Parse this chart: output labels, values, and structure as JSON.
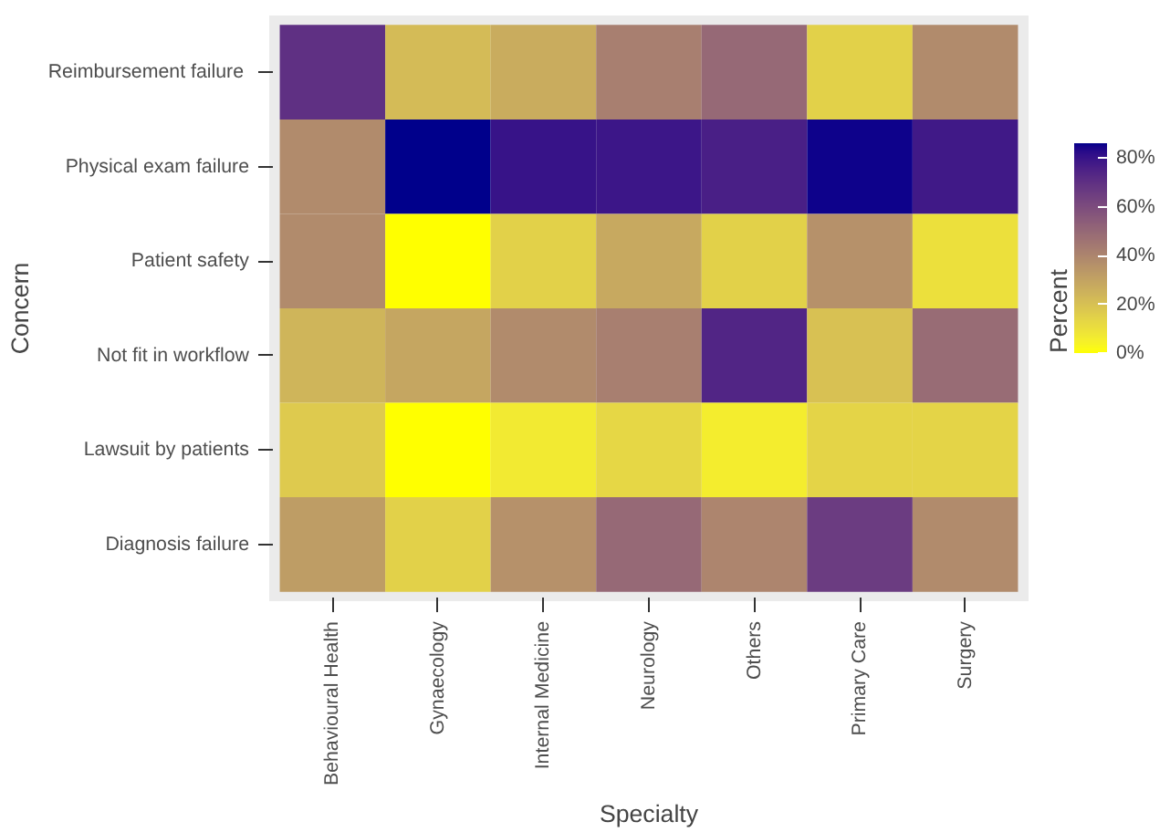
{
  "chart_data": {
    "type": "heatmap",
    "xlabel": "Specialty",
    "ylabel": "Concern",
    "clabel": "Percent",
    "categories": [
      "Behavioural Health",
      "Gynaecology",
      "Internal Medicine",
      "Neurology",
      "Others",
      "Primary Care",
      "Surgery"
    ],
    "y_categories": [
      "Reimbursement  failure",
      "Physical exam failure",
      "Patient safety",
      "Not fit in workflow",
      "Lawsuit by patients",
      "Diagnosis failure"
    ],
    "cells": [
      [
        70,
        22,
        27,
        42,
        50,
        15,
        38
      ],
      [
        38,
        86,
        80,
        79,
        76,
        85,
        78
      ],
      [
        38,
        0,
        15,
        28,
        15,
        36,
        10
      ],
      [
        24,
        29,
        38,
        42,
        74,
        20,
        49
      ],
      [
        17,
        0,
        7,
        13,
        6,
        14,
        14
      ],
      [
        32,
        15,
        36,
        50,
        40,
        66,
        38
      ]
    ],
    "clim": [
      0,
      86
    ],
    "cticks": [
      {
        "value": 0,
        "label": "0%"
      },
      {
        "value": 20,
        "label": "20%"
      },
      {
        "value": 40,
        "label": "40%"
      },
      {
        "value": 60,
        "label": "60%"
      },
      {
        "value": 80,
        "label": "80%"
      }
    ],
    "colors": [
      "#ffff00",
      "#00008b"
    ]
  }
}
